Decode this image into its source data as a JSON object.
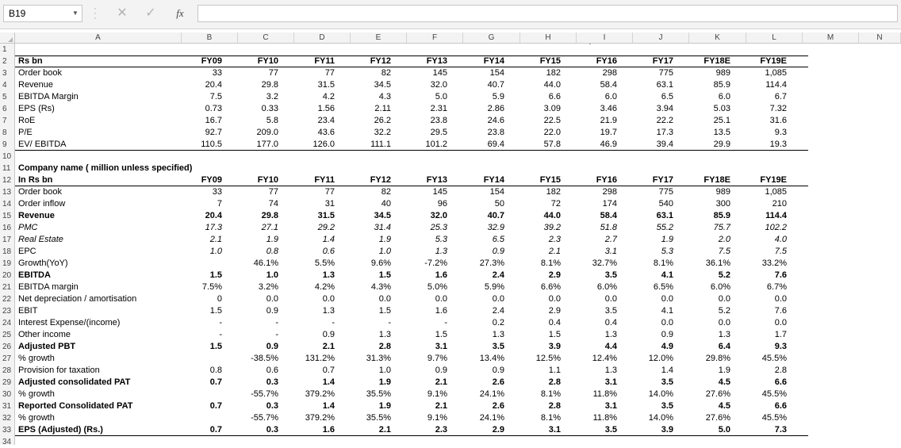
{
  "formula_bar": {
    "name_box": "B19",
    "cancel_glyph": "✕",
    "enter_glyph": "✓",
    "fx_label": "fx",
    "formula_value": ""
  },
  "columns": [
    "A",
    "B",
    "C",
    "D",
    "E",
    "F",
    "G",
    "H",
    "I",
    "J",
    "K",
    "L",
    "M",
    "N"
  ],
  "row_numbers": [
    "1",
    "2",
    "3",
    "4",
    "5",
    "6",
    "7",
    "8",
    "9",
    "10",
    "11",
    "12",
    "13",
    "14",
    "15",
    "16",
    "17",
    "18",
    "19",
    "20",
    "21",
    "22",
    "23",
    "24",
    "25",
    "26",
    "27",
    "28",
    "29",
    "30",
    "31",
    "32",
    "33",
    "34"
  ],
  "stray_mark": "`",
  "sheet": {
    "rows": [
      {
        "label": "",
        "values": []
      },
      {
        "label": "Rs bn",
        "bold": true,
        "values": [
          "FY09",
          "FY10",
          "FY11",
          "FY12",
          "FY13",
          "FY14",
          "FY15",
          "FY16",
          "FY17",
          "FY18E",
          "FY19E"
        ]
      },
      {
        "label": "Order book",
        "values": [
          "33",
          "77",
          "77",
          "82",
          "145",
          "154",
          "182",
          "298",
          "775",
          "989",
          "1,085"
        ]
      },
      {
        "label": "Revenue",
        "values": [
          "20.4",
          "29.8",
          "31.5",
          "34.5",
          "32.0",
          "40.7",
          "44.0",
          "58.4",
          "63.1",
          "85.9",
          "114.4"
        ]
      },
      {
        "label": "EBITDA Margin",
        "values": [
          "7.5",
          "3.2",
          "4.2",
          "4.3",
          "5.0",
          "5.9",
          "6.6",
          "6.0",
          "6.5",
          "6.0",
          "6.7"
        ]
      },
      {
        "label": "EPS (Rs)",
        "values": [
          "0.73",
          "0.33",
          "1.56",
          "2.11",
          "2.31",
          "2.86",
          "3.09",
          "3.46",
          "3.94",
          "5.03",
          "7.32"
        ]
      },
      {
        "label": "RoE",
        "values": [
          "16.7",
          "5.8",
          "23.4",
          "26.2",
          "23.8",
          "24.6",
          "22.5",
          "21.9",
          "22.2",
          "25.1",
          "31.6"
        ]
      },
      {
        "label": "P/E",
        "values": [
          "92.7",
          "209.0",
          "43.6",
          "32.2",
          "29.5",
          "23.8",
          "22.0",
          "19.7",
          "17.3",
          "13.5",
          "9.3"
        ]
      },
      {
        "label": "EV/ EBITDA",
        "values": [
          "110.5",
          "177.0",
          "126.0",
          "111.1",
          "101.2",
          "69.4",
          "57.8",
          "46.9",
          "39.4",
          "29.9",
          "19.3"
        ]
      },
      {
        "label": "",
        "values": []
      },
      {
        "label": "Company name ( million unless specified)",
        "bold": true,
        "values": []
      },
      {
        "label": "In Rs bn",
        "bold": true,
        "values": [
          "FY09",
          "FY10",
          "FY11",
          "FY12",
          "FY13",
          "FY14",
          "FY15",
          "FY16",
          "FY17",
          "FY18E",
          "FY19E"
        ]
      },
      {
        "label": "Order book",
        "values": [
          "33",
          "77",
          "77",
          "82",
          "145",
          "154",
          "182",
          "298",
          "775",
          "989",
          "1,085"
        ]
      },
      {
        "label": "Order inflow",
        "values": [
          "7",
          "74",
          "31",
          "40",
          "96",
          "50",
          "72",
          "174",
          "540",
          "300",
          "210"
        ]
      },
      {
        "label": "Revenue",
        "bold": true,
        "values": [
          "20.4",
          "29.8",
          "31.5",
          "34.5",
          "32.0",
          "40.7",
          "44.0",
          "58.4",
          "63.1",
          "85.9",
          "114.4"
        ]
      },
      {
        "label": "PMC",
        "italic": true,
        "values": [
          "17.3",
          "27.1",
          "29.2",
          "31.4",
          "25.3",
          "32.9",
          "39.2",
          "51.8",
          "55.2",
          "75.7",
          "102.2"
        ]
      },
      {
        "label": "Real Estate",
        "italic": true,
        "values": [
          "2.1",
          "1.9",
          "1.4",
          "1.9",
          "5.3",
          "6.5",
          "2.3",
          "2.7",
          "1.9",
          "2.0",
          "4.0"
        ]
      },
      {
        "label": "EPC",
        "values": [
          "1.0",
          "0.8",
          "0.6",
          "1.0",
          "1.3",
          "0.9",
          "2.1",
          "3.1",
          "5.3",
          "7.5",
          "7.5"
        ],
        "italic_values": true
      },
      {
        "label": "Growth(YoY)",
        "values": [
          "",
          "46.1%",
          "5.5%",
          "9.6%",
          "-7.2%",
          "27.3%",
          "8.1%",
          "32.7%",
          "8.1%",
          "36.1%",
          "33.2%"
        ]
      },
      {
        "label": "EBITDA",
        "bold": true,
        "values": [
          "1.5",
          "1.0",
          "1.3",
          "1.5",
          "1.6",
          "2.4",
          "2.9",
          "3.5",
          "4.1",
          "5.2",
          "7.6"
        ]
      },
      {
        "label": "EBITDA margin",
        "values": [
          "7.5%",
          "3.2%",
          "4.2%",
          "4.3%",
          "5.0%",
          "5.9%",
          "6.6%",
          "6.0%",
          "6.5%",
          "6.0%",
          "6.7%"
        ]
      },
      {
        "label": "Net depreciation / amortisation",
        "values": [
          "0",
          "0.0",
          "0.0",
          "0.0",
          "0.0",
          "0.0",
          "0.0",
          "0.0",
          "0.0",
          "0.0",
          "0.0"
        ]
      },
      {
        "label": "EBIT",
        "values": [
          "1.5",
          "0.9",
          "1.3",
          "1.5",
          "1.6",
          "2.4",
          "2.9",
          "3.5",
          "4.1",
          "5.2",
          "7.6"
        ]
      },
      {
        "label": "Interest Expense/(income)",
        "values": [
          "-",
          "-",
          "-",
          "-",
          "-",
          "0.2",
          "0.4",
          "0.4",
          "0.0",
          "0.0",
          "0.0"
        ]
      },
      {
        "label": "Other income",
        "values": [
          "-",
          "-",
          "0.9",
          "1.3",
          "1.5",
          "1.3",
          "1.5",
          "1.3",
          "0.9",
          "1.3",
          "1.7"
        ]
      },
      {
        "label": "Adjusted PBT",
        "bold": true,
        "values": [
          "1.5",
          "0.9",
          "2.1",
          "2.8",
          "3.1",
          "3.5",
          "3.9",
          "4.4",
          "4.9",
          "6.4",
          "9.3"
        ]
      },
      {
        "label": "% growth",
        "values": [
          "",
          "-38.5%",
          "131.2%",
          "31.3%",
          "9.7%",
          "13.4%",
          "12.5%",
          "12.4%",
          "12.0%",
          "29.8%",
          "45.5%"
        ]
      },
      {
        "label": "Provision for taxation",
        "values": [
          "0.8",
          "0.6",
          "0.7",
          "1.0",
          "0.9",
          "0.9",
          "1.1",
          "1.3",
          "1.4",
          "1.9",
          "2.8"
        ]
      },
      {
        "label": "Adjusted consolidated PAT",
        "bold": true,
        "values": [
          "0.7",
          "0.3",
          "1.4",
          "1.9",
          "2.1",
          "2.6",
          "2.8",
          "3.1",
          "3.5",
          "4.5",
          "6.6"
        ]
      },
      {
        "label": "% growth",
        "values": [
          "",
          "-55.7%",
          "379.2%",
          "35.5%",
          "9.1%",
          "24.1%",
          "8.1%",
          "11.8%",
          "14.0%",
          "27.6%",
          "45.5%"
        ]
      },
      {
        "label": "Reported Consolidated PAT",
        "bold": true,
        "values": [
          "0.7",
          "0.3",
          "1.4",
          "1.9",
          "2.1",
          "2.6",
          "2.8",
          "3.1",
          "3.5",
          "4.5",
          "6.6"
        ]
      },
      {
        "label": "% growth",
        "values": [
          "",
          "-55.7%",
          "379.2%",
          "35.5%",
          "9.1%",
          "24.1%",
          "8.1%",
          "11.8%",
          "14.0%",
          "27.6%",
          "45.5%"
        ]
      },
      {
        "label": "EPS (Adjusted) (Rs.)",
        "bold": true,
        "values": [
          "0.7",
          "0.3",
          "1.6",
          "2.1",
          "2.3",
          "2.9",
          "3.1",
          "3.5",
          "3.9",
          "5.0",
          "7.3"
        ]
      },
      {
        "label": "",
        "values": []
      }
    ]
  }
}
